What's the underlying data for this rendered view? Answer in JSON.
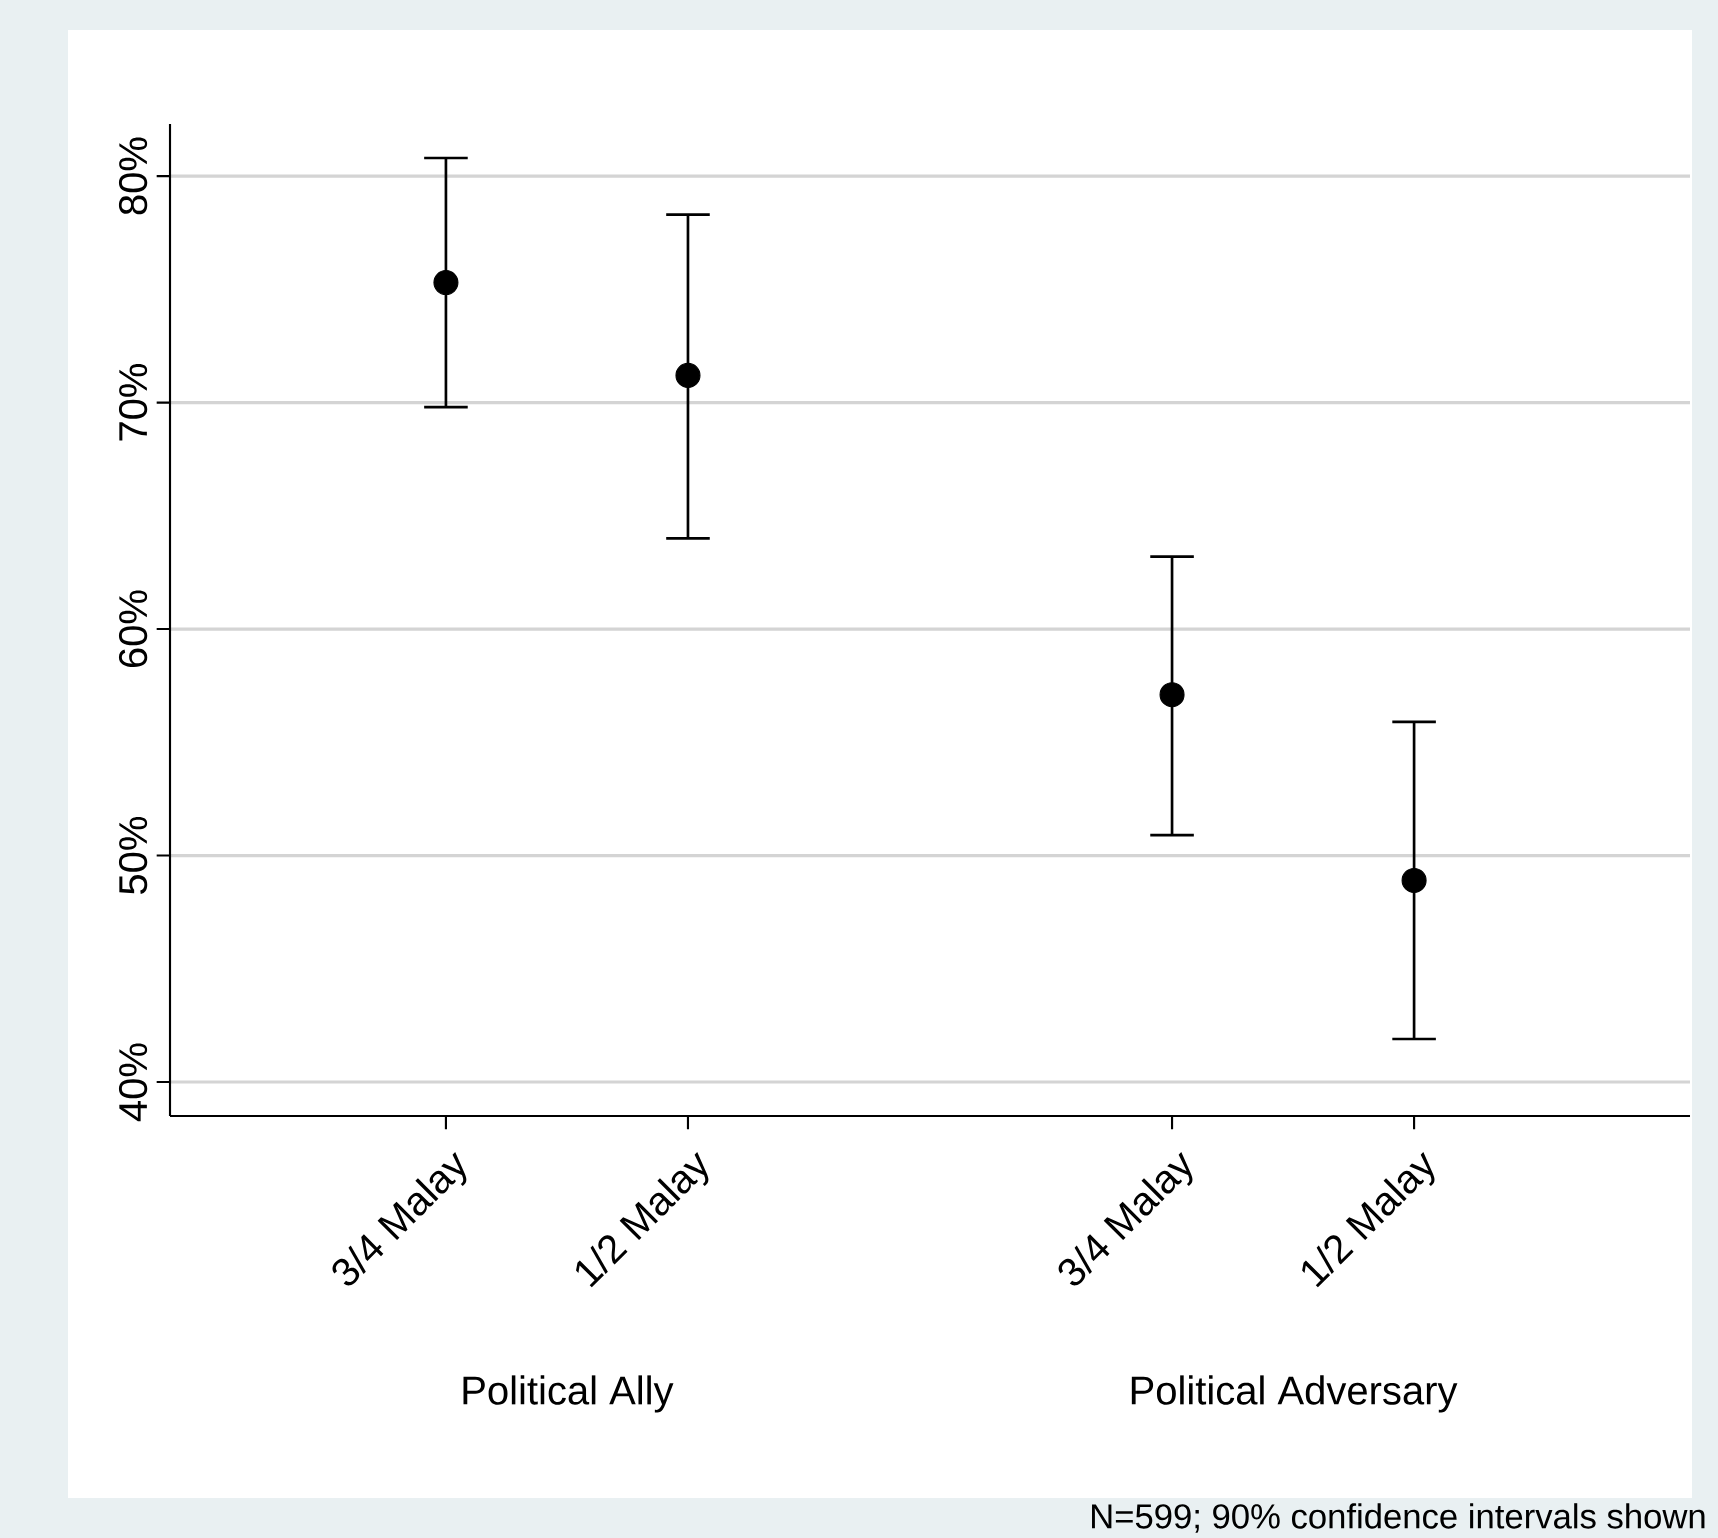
{
  "chart_data": {
    "type": "scatter",
    "categories": [
      "3/4 Malay",
      "1/2 Malay",
      null,
      "3/4 Malay",
      "1/2 Malay"
    ],
    "values": [
      75.3,
      71.2,
      null,
      57.1,
      48.9
    ],
    "errors": [
      [
        69.8,
        80.8
      ],
      [
        64.0,
        78.3
      ],
      null,
      [
        50.9,
        63.2
      ],
      [
        41.9,
        55.9
      ]
    ],
    "color": "#000000",
    "grid": "y",
    "ylim": [
      38.5,
      82.3
    ],
    "yticks": [
      {
        "value": 40,
        "label": "40%"
      },
      {
        "value": 50,
        "label": "50%"
      },
      {
        "value": 60,
        "label": "60%"
      },
      {
        "value": 70,
        "label": "70%"
      },
      {
        "value": 80,
        "label": "80%"
      }
    ],
    "annotations": [
      "Political Ally",
      "Political Adversary",
      "N=599; 90% confidence intervals shown"
    ]
  }
}
